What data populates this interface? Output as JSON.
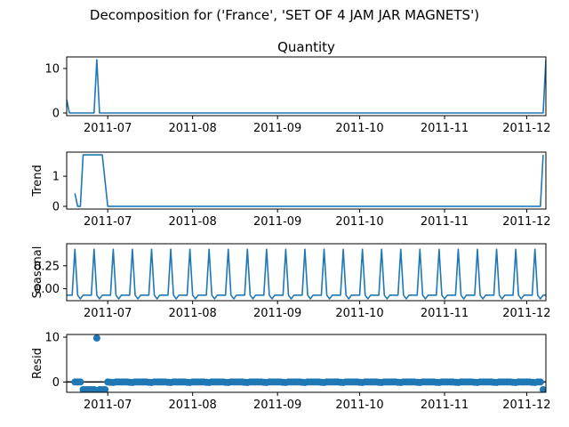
{
  "suptitle": "Decomposition for ('France', 'SET OF 4 JAM JAR MAGNETS')",
  "chart_data": [
    {
      "type": "line",
      "title": "Quantity",
      "ylabel": "",
      "x_range": [
        "2011-06-16",
        "2011-12-08"
      ],
      "x_ticks": [
        "2011-07",
        "2011-08",
        "2011-09",
        "2011-10",
        "2011-11",
        "2011-12"
      ],
      "ylim": [
        -0.6,
        12.6
      ],
      "y_ticks": [
        0,
        10
      ],
      "grid": false,
      "series": [
        {
          "x": [
            "2011-06-16",
            "2011-06-17",
            "2011-06-26",
            "2011-06-27",
            "2011-06-28",
            "2011-12-07",
            "2011-12-08"
          ],
          "y": [
            3,
            0,
            0,
            12,
            0,
            0,
            12
          ]
        }
      ]
    },
    {
      "type": "line",
      "title": "",
      "ylabel": "Trend",
      "x_range": [
        "2011-06-16",
        "2011-12-08"
      ],
      "x_ticks": [
        "2011-07",
        "2011-08",
        "2011-09",
        "2011-10",
        "2011-11",
        "2011-12"
      ],
      "ylim": [
        -0.09,
        1.8
      ],
      "y_ticks": [
        0,
        1
      ],
      "grid": false,
      "series": [
        {
          "x": [
            "2011-06-19",
            "2011-06-20",
            "2011-06-21",
            "2011-06-22",
            "2011-06-23",
            "2011-06-24",
            "2011-06-25",
            "2011-06-26",
            "2011-06-27",
            "2011-06-28",
            "2011-06-29",
            "2011-07-01",
            "2011-12-05",
            "2011-12-06",
            "2011-12-07"
          ],
          "y": [
            0.43,
            0,
            0,
            1.71,
            1.71,
            1.71,
            1.71,
            1.71,
            1.71,
            1.71,
            1.71,
            0,
            0,
            0,
            1.71
          ]
        }
      ]
    },
    {
      "type": "line",
      "title": "",
      "ylabel": "Seasonal",
      "x_range": [
        "2011-06-16",
        "2011-12-08"
      ],
      "x_ticks": [
        "2011-07",
        "2011-08",
        "2011-09",
        "2011-10",
        "2011-11",
        "2011-12"
      ],
      "ylim": [
        -0.13,
        0.49
      ],
      "y_ticks": [
        0.0,
        0.25
      ],
      "y_tick_labels": [
        "0.00",
        "0.25"
      ],
      "grid": false,
      "period_days": 7,
      "first_peak": "2011-06-19",
      "weekly_pattern": [
        0.43,
        -0.07,
        -0.11,
        -0.07,
        -0.07,
        -0.07,
        -0.07
      ]
    },
    {
      "type": "scatter",
      "title": "",
      "ylabel": "Resid",
      "x_range": [
        "2011-06-16",
        "2011-12-08"
      ],
      "x_ticks": [
        "2011-07",
        "2011-08",
        "2011-09",
        "2011-10",
        "2011-11",
        "2011-12"
      ],
      "ylim": [
        -2.3,
        10.6
      ],
      "y_ticks": [
        0,
        10
      ],
      "grid": false,
      "baseline": 0,
      "points": [
        {
          "x": "2011-06-19",
          "y": 0
        },
        {
          "x": "2011-06-20",
          "y": 0
        },
        {
          "x": "2011-06-21",
          "y": 0
        },
        {
          "x": "2011-06-22",
          "y": -1.7
        },
        {
          "x": "2011-06-23",
          "y": -1.7
        },
        {
          "x": "2011-06-24",
          "y": -1.7
        },
        {
          "x": "2011-06-25",
          "y": -1.7
        },
        {
          "x": "2011-06-26",
          "y": -1.7
        },
        {
          "x": "2011-06-27",
          "y": 9.8
        },
        {
          "x": "2011-06-28",
          "y": -1.7
        },
        {
          "x": "2011-06-29",
          "y": -1.7
        },
        {
          "x": "2011-06-30",
          "y": -1.7
        },
        {
          "x": "2011-12-07",
          "y": -1.7
        }
      ],
      "fill_range": [
        "2011-07-01",
        "2011-12-06"
      ],
      "fill_weekly_pattern": [
        0.0,
        -0.07,
        -0.11,
        0.0,
        0.0,
        0.0,
        0.0
      ]
    }
  ]
}
